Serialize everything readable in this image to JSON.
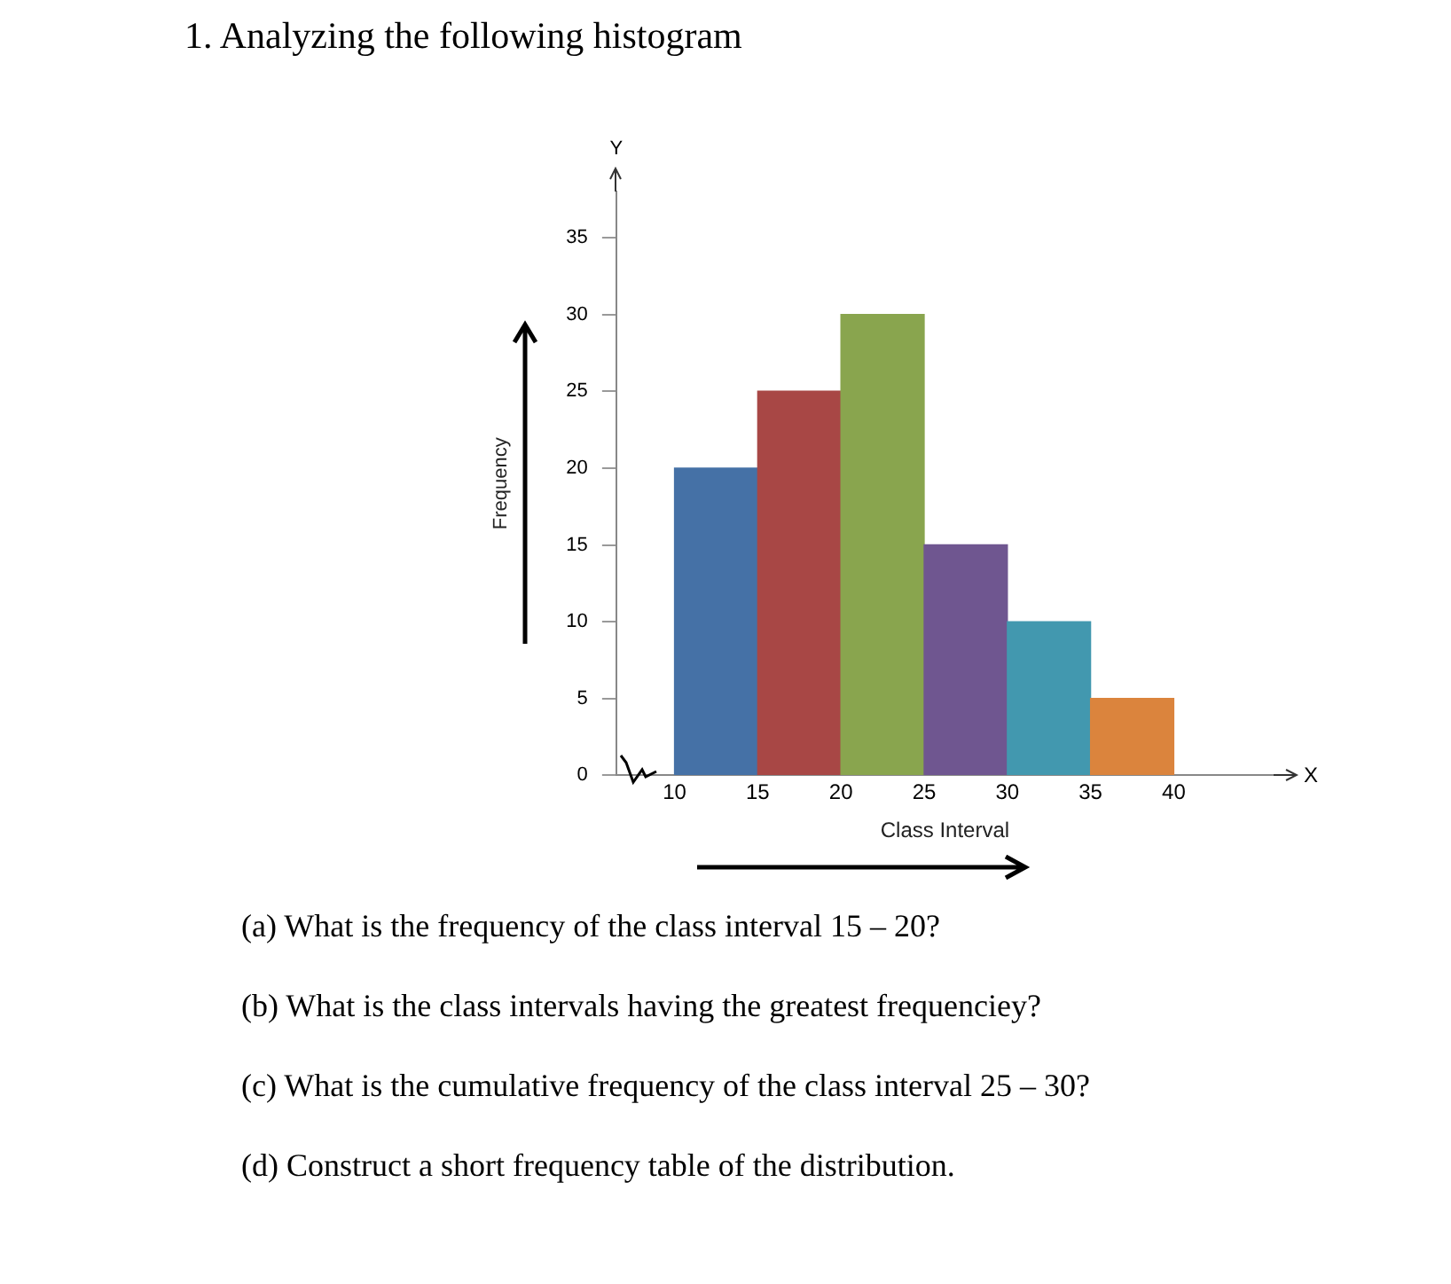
{
  "chart_data": {
    "type": "histogram",
    "title": "1. Analyzing the following histogram",
    "xlabel": "Class Interval",
    "ylabel": "Frequency",
    "bins": [
      10,
      15,
      20,
      25,
      30,
      35,
      40
    ],
    "values": [
      20,
      25,
      30,
      15,
      10,
      5
    ],
    "colors": [
      "#4571a6",
      "#a84745",
      "#89a54e",
      "#6f5690",
      "#4298af",
      "#db843d"
    ],
    "xlim": [
      6.5,
      46
    ],
    "xticks": [
      10,
      15,
      20,
      25,
      30,
      35,
      40
    ],
    "ylim": [
      0,
      38
    ],
    "yticks": [
      0,
      5,
      10,
      15,
      20,
      25,
      30,
      35
    ],
    "grid": false,
    "annotations": [
      "Y",
      "X",
      "(a) What is the frequency of the class interval 15 – 20?",
      "(b) What is the class intervals having the greatest frequenciey?",
      "(c) What is the cumulative frequency of the class interval 25 – 30?",
      "(d) Construct a short frequency table of the distribution."
    ]
  }
}
